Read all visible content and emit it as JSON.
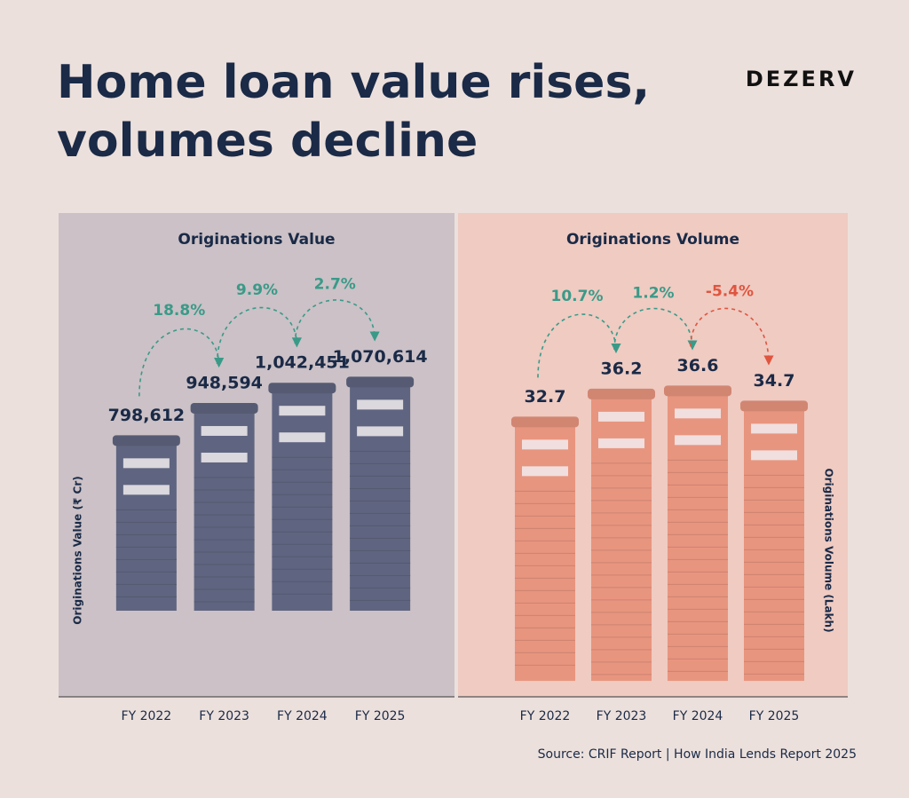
{
  "title": "Home loan value rises, volumes decline",
  "brand": "DEZERV",
  "source": "Source: CRIF Report | How India Lends Report 2025",
  "chart_data": [
    {
      "type": "bar",
      "title": "Originations Value",
      "y_label": "Originations Value (₹ Cr)",
      "categories": [
        "FY 2022",
        "FY 2023",
        "FY 2024",
        "FY 2025"
      ],
      "values": [
        798612,
        948594,
        1042451,
        1070614
      ],
      "value_labels": [
        "798,612",
        "948,594",
        "1,042,451",
        "1,070,614"
      ],
      "growth_labels": [
        "18.8%",
        "9.9%",
        "2.7%"
      ],
      "growth_colors": [
        "#3a9a88",
        "#3a9a88",
        "#3a9a88"
      ],
      "color": "#5f6580",
      "background": "#cbc1c6",
      "ylim": [
        -400000,
        1600000
      ],
      "y_label_side": "left"
    },
    {
      "type": "bar",
      "title": "Originations Volume",
      "y_label": "Originations Volume (Lakh)",
      "categories": [
        "FY 2022",
        "FY 2023",
        "FY 2024",
        "FY 2025"
      ],
      "values": [
        32.7,
        36.2,
        36.6,
        34.7
      ],
      "growth_labels": [
        "10.7%",
        "1.2%",
        "-5.4%"
      ],
      "growth_colors": [
        "#3a9a88",
        "#3a9a88",
        "#e0553f"
      ],
      "color": "#e8957f",
      "background": "#efcbc2",
      "ylim": [
        -2,
        52
      ],
      "y_label_side": "right"
    }
  ]
}
